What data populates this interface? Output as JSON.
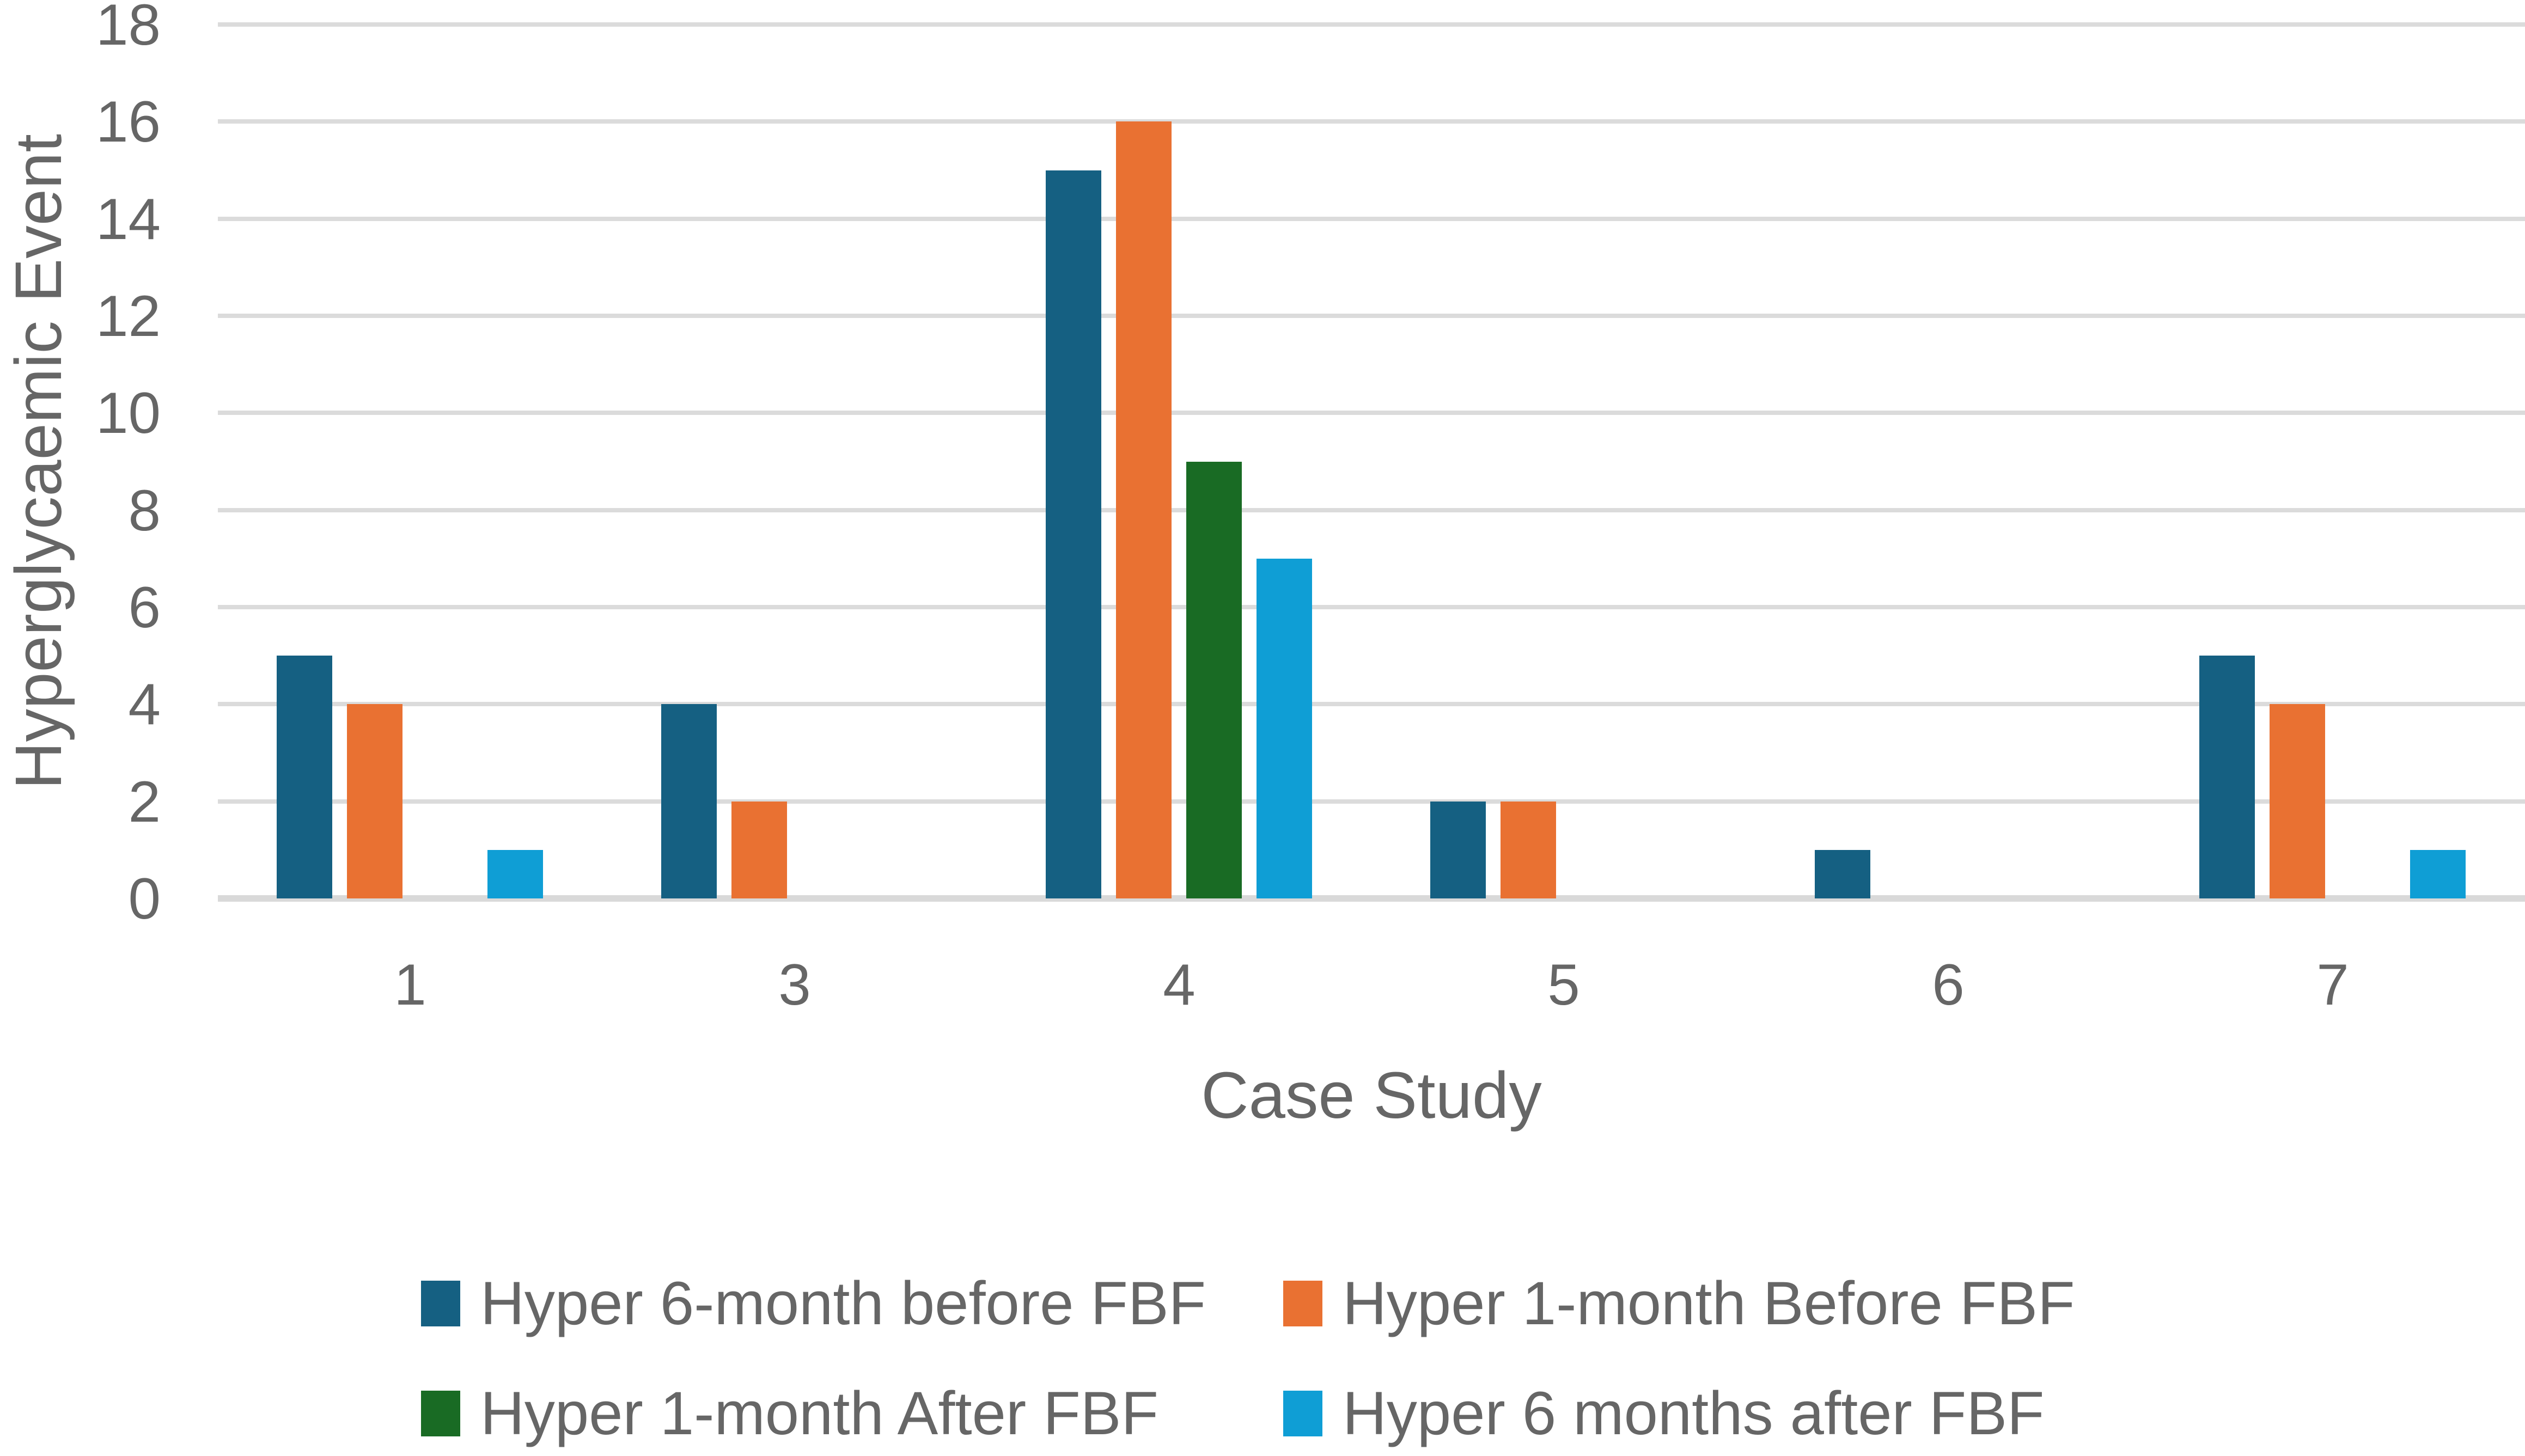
{
  "chart_data": {
    "type": "bar",
    "title": "",
    "xlabel": "Case Study",
    "ylabel": "Hyperglycaemic Event",
    "categories": [
      "1",
      "3",
      "4",
      "5",
      "6",
      "7"
    ],
    "series": [
      {
        "name": "Hyper 6-month before FBF",
        "color": "#156082",
        "values": [
          5,
          4,
          15,
          2,
          1,
          5
        ]
      },
      {
        "name": "Hyper 1-month Before FBF",
        "color": "#E97132",
        "values": [
          4,
          2,
          16,
          2,
          0,
          4
        ]
      },
      {
        "name": "Hyper 1-month After FBF",
        "color": "#196B24",
        "values": [
          0,
          0,
          9,
          0,
          0,
          0
        ]
      },
      {
        "name": "Hyper 6 months after FBF",
        "color": "#0F9ED5",
        "values": [
          1,
          0,
          7,
          0,
          0,
          1
        ]
      }
    ],
    "ylim": [
      0,
      18
    ],
    "yticks": [
      0,
      2,
      4,
      6,
      8,
      10,
      12,
      14,
      16,
      18
    ],
    "grid": true,
    "legend_position": "bottom",
    "colors": {
      "gridline": "#DBDBDB",
      "axis_line": "#D9D9D9",
      "text": "#666666"
    }
  }
}
